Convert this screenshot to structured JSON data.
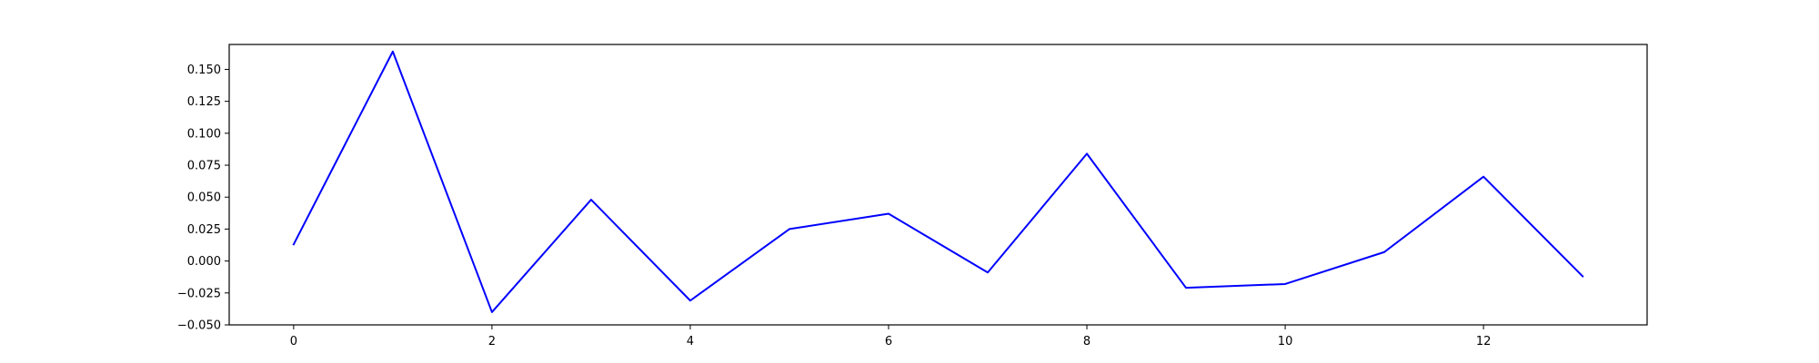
{
  "chart_data": {
    "type": "line",
    "title": "",
    "xlabel": "",
    "ylabel": "",
    "xlim": [
      -0.65,
      13.65
    ],
    "ylim": [
      -0.05,
      0.1695
    ],
    "x_ticks": [
      0,
      2,
      4,
      6,
      8,
      10,
      12
    ],
    "x_tick_labels": [
      "0",
      "2",
      "4",
      "6",
      "8",
      "10",
      "12"
    ],
    "y_ticks": [
      -0.05,
      -0.025,
      0.0,
      0.025,
      0.05,
      0.075,
      0.1,
      0.125,
      0.15
    ],
    "y_tick_labels": [
      "−0.050",
      "−0.025",
      "0.000",
      "0.025",
      "0.050",
      "0.075",
      "0.100",
      "0.125",
      "0.150"
    ],
    "grid": false,
    "legend": "none",
    "series": [
      {
        "color": "#0000ff",
        "x": [
          0,
          1,
          2,
          3,
          4,
          5,
          6,
          7,
          8,
          9,
          10,
          11,
          12,
          13
        ],
        "y": [
          0.013,
          0.164,
          -0.04,
          0.048,
          -0.031,
          0.025,
          0.037,
          -0.009,
          0.084,
          -0.021,
          -0.018,
          0.007,
          0.066,
          -0.012
        ]
      }
    ]
  }
}
